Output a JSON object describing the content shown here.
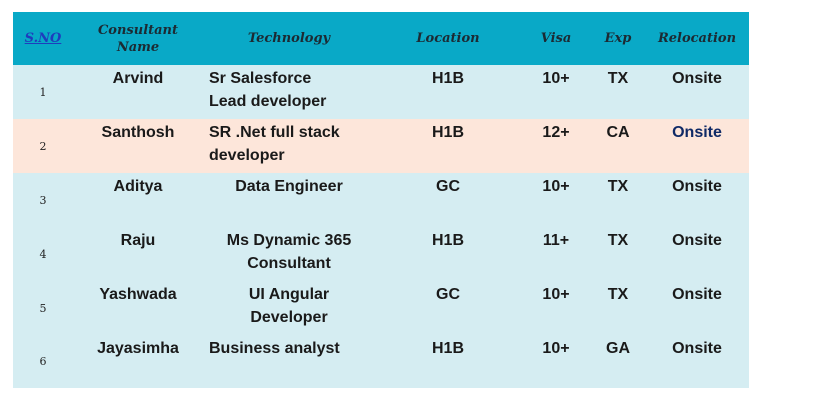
{
  "headers": {
    "sno": "S.NO",
    "name_line1": "Consultant",
    "name_line2": "Name",
    "technology": "Technology",
    "location": "Location",
    "visa": "Visa",
    "exp": "Exp",
    "relocation": "Relocation"
  },
  "rows": [
    {
      "sno": "1",
      "name": "Arvind",
      "tech_line1": "Sr Salesforce",
      "tech_line2": "Lead developer",
      "location": "H1B",
      "visa": "10+",
      "exp": "TX",
      "relocation": "Onsite"
    },
    {
      "sno": "2",
      "name": "Santhosh",
      "tech_line1": "SR .Net full stack",
      "tech_line2": "developer",
      "location": "H1B",
      "visa": "12+",
      "exp": "CA",
      "relocation": "Onsite"
    },
    {
      "sno": "3",
      "name": "Aditya",
      "tech_line1": "Data Engineer",
      "tech_line2": "",
      "location": "GC",
      "visa": "10+",
      "exp": "TX",
      "relocation": "Onsite"
    },
    {
      "sno": "4",
      "name": "Raju",
      "tech_line1": "Ms Dynamic 365",
      "tech_line2": "Consultant",
      "location": "H1B",
      "visa": "11+",
      "exp": "TX",
      "relocation": "Onsite"
    },
    {
      "sno": "5",
      "name": "Yashwada",
      "tech_line1": "UI Angular",
      "tech_line2": "Developer",
      "location": "GC",
      "visa": "10+",
      "exp": "TX",
      "relocation": "Onsite"
    },
    {
      "sno": "6",
      "name": "Jayasimha",
      "tech_line1": "Business analyst",
      "tech_line2": "",
      "location": "H1B",
      "visa": "10+",
      "exp": "GA",
      "relocation": "Onsite"
    }
  ],
  "colors": {
    "header_bg": "#09a9c7",
    "row_bg": "#d5edf2",
    "highlight_row_bg": "#fde6da"
  }
}
